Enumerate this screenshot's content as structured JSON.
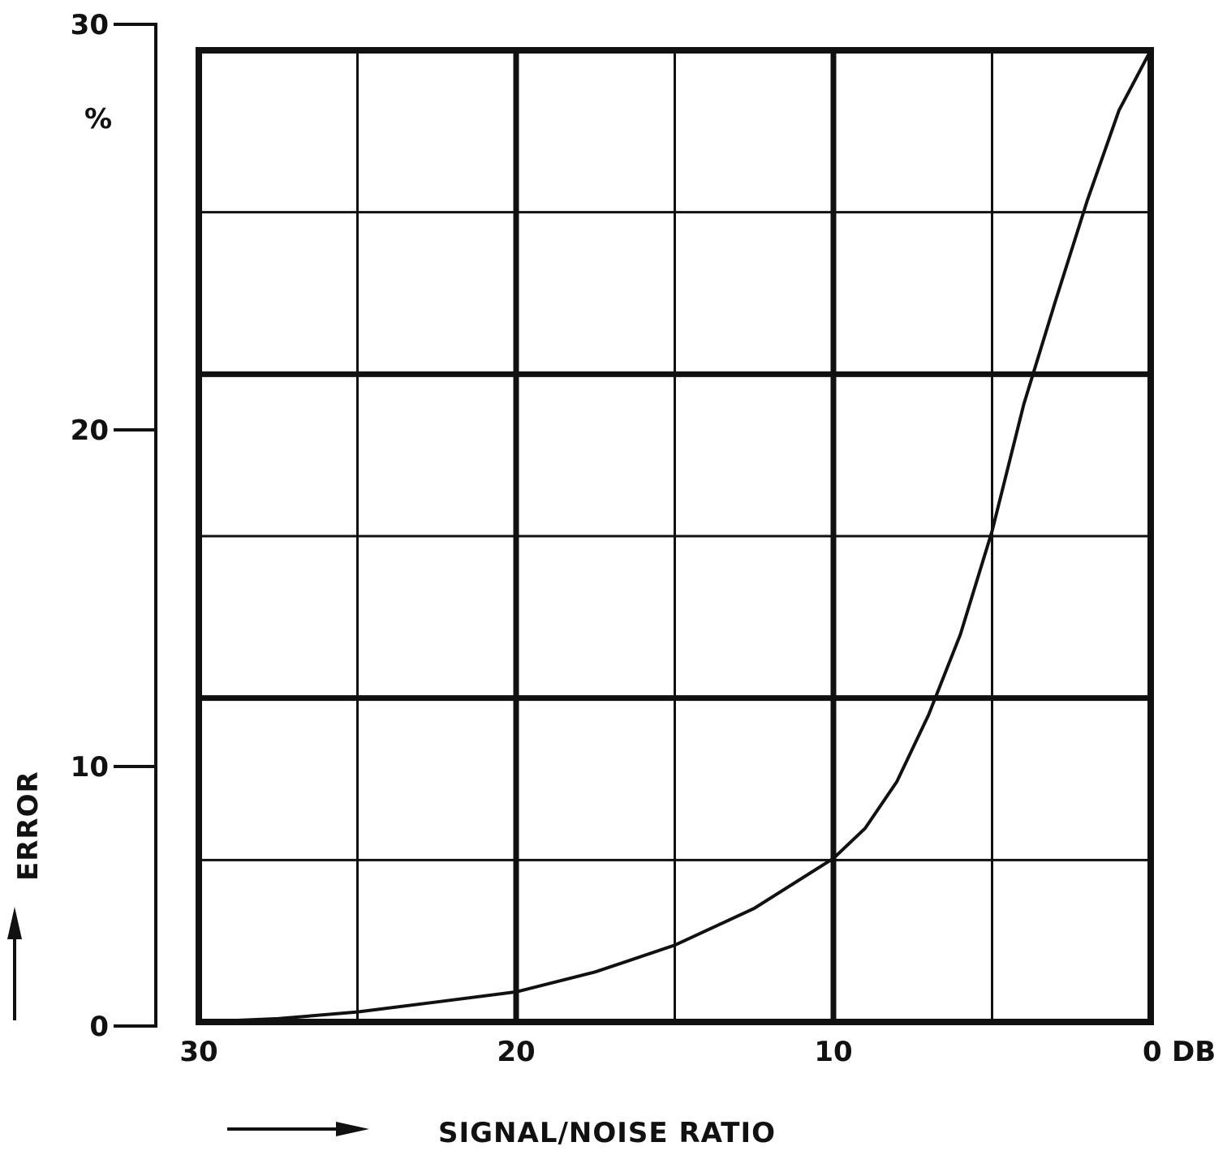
{
  "chart_data": {
    "type": "line",
    "xlabel": "SIGNAL/NOISE RATIO",
    "ylabel": "ERROR",
    "y_unit": "%",
    "x_unit": "DB",
    "xlim": [
      30,
      0
    ],
    "ylim": [
      0,
      30
    ],
    "x_ticks": [
      {
        "value": 30,
        "label": "30"
      },
      {
        "value": 20,
        "label": "20"
      },
      {
        "value": 10,
        "label": "10"
      },
      {
        "value": 0,
        "label": "0"
      }
    ],
    "y_ticks": [
      {
        "value": 30,
        "label": "30"
      },
      {
        "value": 20,
        "label": "20"
      },
      {
        "value": 10,
        "label": "10"
      },
      {
        "value": 0,
        "label": "0"
      }
    ],
    "grid": true,
    "series": [
      {
        "color": "#111111",
        "x": [
          30,
          27.5,
          25,
          22.5,
          20,
          17.5,
          15,
          12.5,
          10,
          9,
          8,
          7,
          6,
          5,
          4,
          3,
          2,
          1,
          0
        ],
        "y": [
          0.0,
          0.1,
          0.3,
          0.6,
          0.9,
          1.5,
          2.3,
          3.4,
          4.9,
          5.8,
          7.2,
          9.2,
          11.6,
          14.7,
          18.5,
          21.6,
          24.6,
          27.3,
          29.1
        ]
      }
    ]
  },
  "colors": {
    "ink": "#111111",
    "background": "#ffffff"
  },
  "icons": [
    "up-arrow-icon",
    "right-arrow-icon"
  ]
}
